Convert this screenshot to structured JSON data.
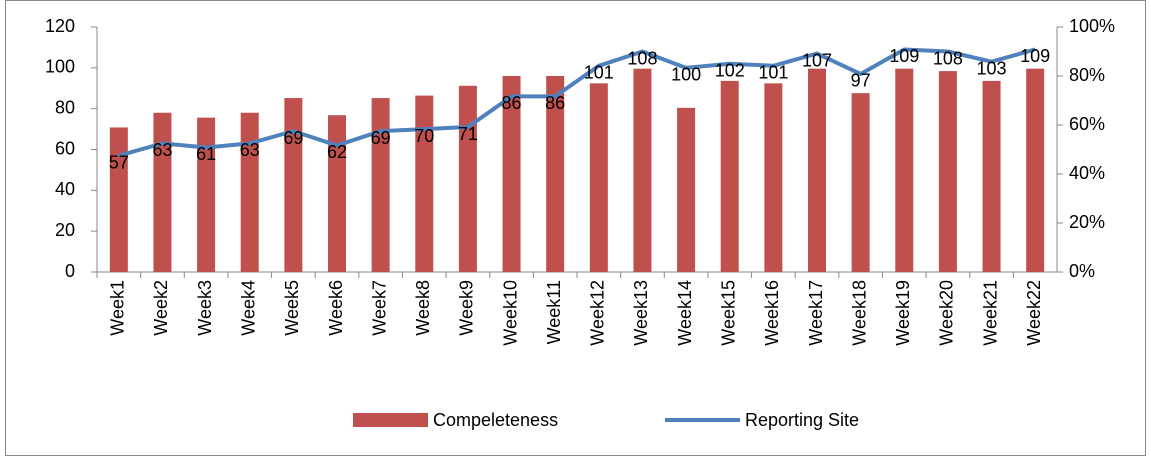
{
  "chart_data": {
    "type": "bar-line",
    "categories": [
      "Week1",
      "Week2",
      "Week3",
      "Week4",
      "Week5",
      "Week6",
      "Week7",
      "Week8",
      "Week9",
      "Week10",
      "Week11",
      "Week12",
      "Week13",
      "Week14",
      "Week15",
      "Week16",
      "Week17",
      "Week18",
      "Week19",
      "Week20",
      "Week21",
      "Week22"
    ],
    "series": [
      {
        "name": "Compeleteness",
        "type": "bar",
        "axis": "y2",
        "color": "#c0504d",
        "values": [
          59,
          65,
          63,
          65,
          71,
          64,
          71,
          72,
          76,
          80,
          80,
          77,
          83,
          67,
          78,
          77,
          83,
          73,
          83,
          82,
          78,
          83
        ]
      },
      {
        "name": "Reporting Site",
        "type": "line",
        "axis": "y",
        "color": "#4f81bd",
        "values": [
          57,
          63,
          61,
          63,
          69,
          62,
          69,
          70,
          71,
          86,
          86,
          101,
          108,
          100,
          102,
          101,
          107,
          97,
          109,
          108,
          103,
          109
        ]
      }
    ],
    "ylim": [
      0,
      120
    ],
    "yticks": [
      0,
      20,
      40,
      60,
      80,
      100,
      120
    ],
    "y2lim": [
      0,
      100
    ],
    "y2ticks": [
      {
        "value": 0,
        "label": "0%"
      },
      {
        "value": 20,
        "label": "20%"
      },
      {
        "value": 40,
        "label": "40%"
      },
      {
        "value": 60,
        "label": "60%"
      },
      {
        "value": 80,
        "label": "80%"
      },
      {
        "value": 100,
        "label": "100%"
      }
    ],
    "legend": "bottom"
  }
}
